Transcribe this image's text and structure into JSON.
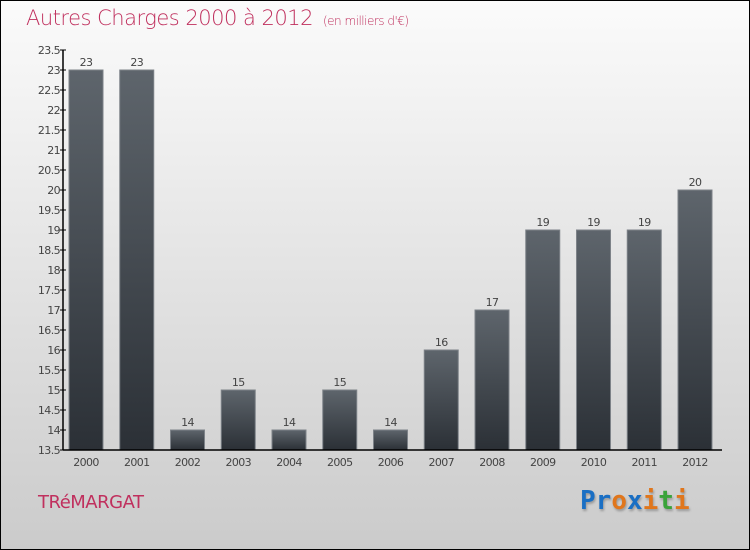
{
  "header": {
    "title": "Autres Charges 2000 à 2012",
    "subtitle": "(en milliers d'€)"
  },
  "footer": {
    "commune": "TRéMARGAT",
    "logo": [
      "P",
      "r",
      "o",
      "x",
      "i",
      "t",
      "i"
    ]
  },
  "colors": {
    "title": "#c0305e",
    "bar_top": "#5e656c",
    "bar_bottom": "#2b3036",
    "logo": [
      "#1a6fc4",
      "#1a6fc4",
      "#e0761c",
      "#1a6fc4",
      "#e0761c",
      "#3aa33a",
      "#e0761c"
    ]
  },
  "chart_data": {
    "type": "bar",
    "title": "Autres Charges 2000 à 2012",
    "xlabel": "",
    "ylabel": "(en milliers d'€)",
    "categories": [
      "2000",
      "2001",
      "2002",
      "2003",
      "2004",
      "2005",
      "2006",
      "2007",
      "2008",
      "2009",
      "2010",
      "2011",
      "2012"
    ],
    "values": [
      23,
      23,
      14,
      15,
      14,
      15,
      14,
      16,
      17,
      19,
      19,
      19,
      20
    ],
    "ylim": [
      13.5,
      23.5
    ],
    "yticks": [
      "13.5",
      "14",
      "14.5",
      "15",
      "15.5",
      "16",
      "16.5",
      "17",
      "17.5",
      "18",
      "18.5",
      "19",
      "19.5",
      "20",
      "20.5",
      "21",
      "21.5",
      "22",
      "22.5",
      "23",
      "23.5"
    ],
    "grid": false
  }
}
